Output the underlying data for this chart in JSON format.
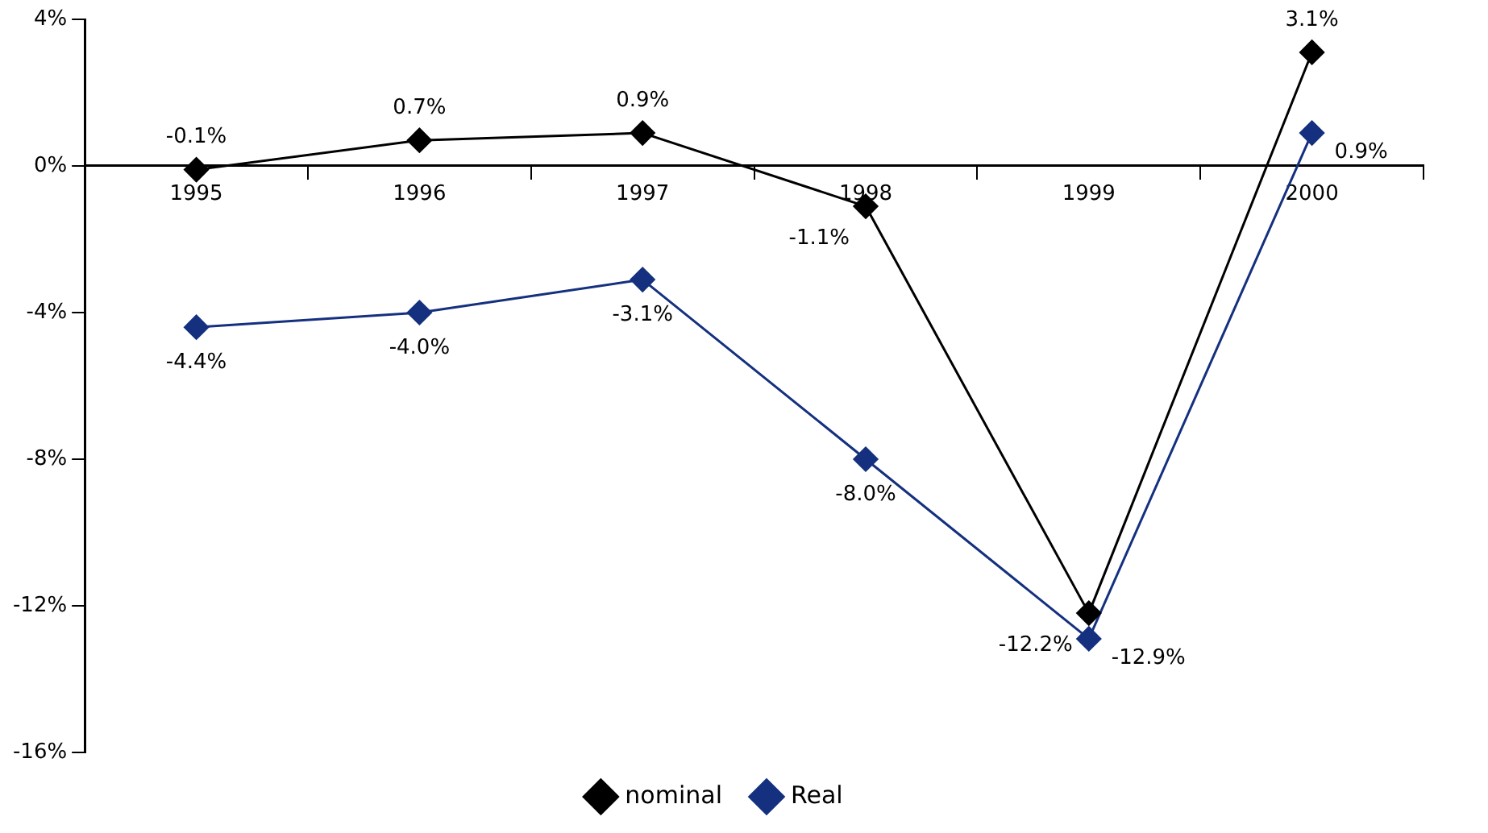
{
  "chart_data": {
    "type": "line",
    "categories": [
      "1995",
      "1996",
      "1997",
      "1998",
      "1999",
      "2000"
    ],
    "series": [
      {
        "name": "nominal",
        "color": "#000000",
        "values": [
          -0.1,
          0.7,
          0.9,
          -1.1,
          -12.2,
          3.1
        ],
        "value_labels": [
          "-0.1%",
          "0.7%",
          "0.9%",
          "-1.1%",
          "-12.2%",
          "3.1%"
        ]
      },
      {
        "name": "Real",
        "color": "#14307f",
        "values": [
          -4.4,
          -4.0,
          -3.1,
          -8.0,
          -12.9,
          0.9
        ],
        "value_labels": [
          "-4.4%",
          "-4.0%",
          "-3.1%",
          "-8.0%",
          "-12.9%",
          "0.9%"
        ]
      }
    ],
    "ylim": [
      -16,
      4
    ],
    "yticks": [
      {
        "value": -16,
        "label": "-16%"
      },
      {
        "value": -12,
        "label": "-12%"
      },
      {
        "value": -8,
        "label": "-8%"
      },
      {
        "value": -4,
        "label": "-4%"
      },
      {
        "value": 0,
        "label": "0%"
      },
      {
        "value": 4,
        "label": "4%"
      }
    ],
    "grid": false,
    "legend": "bottom",
    "marker": "diamond",
    "line_style": "solid"
  }
}
